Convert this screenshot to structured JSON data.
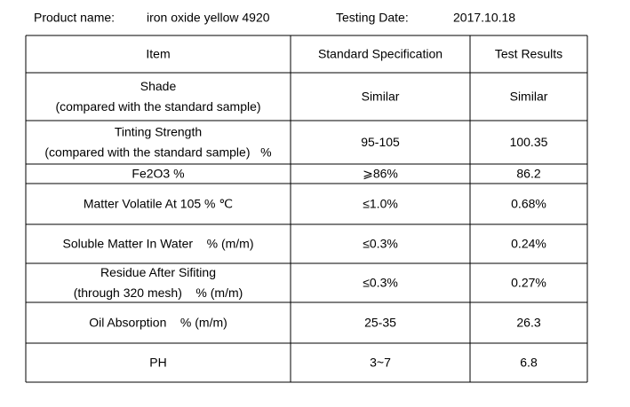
{
  "header": {
    "product_label": "Product name:",
    "product_name": "iron oxide yellow 4920",
    "date_label": "Testing Date:",
    "date": "2017.10.18"
  },
  "table": {
    "columns": [
      "Item",
      "Standard Specification",
      "Test Results"
    ],
    "rows": [
      [
        [
          "Shade",
          "(compared with the standard sample)"
        ],
        "Similar",
        "Similar"
      ],
      [
        [
          "Tinting Strength",
          "(compared with the standard sample)   %"
        ],
        "95-105",
        "100.35"
      ],
      [
        "Fe2O3 %",
        "⩾86%",
        "86.2"
      ],
      [
        "Matter Volatile At 105 % ℃",
        "≤1.0%",
        "0.68%"
      ],
      [
        "Soluble Matter In Water    % (m/m)",
        "≤0.3%",
        "0.24%"
      ],
      [
        [
          "Residue After Sifiting",
          "(through 320 mesh)    % (m/m)"
        ],
        "≤0.3%",
        "0.27%"
      ],
      [
        "Oil Absorption    % (m/m)",
        "25-35",
        "26.3"
      ],
      [
        "PH",
        "3~7",
        "6.8"
      ]
    ]
  }
}
